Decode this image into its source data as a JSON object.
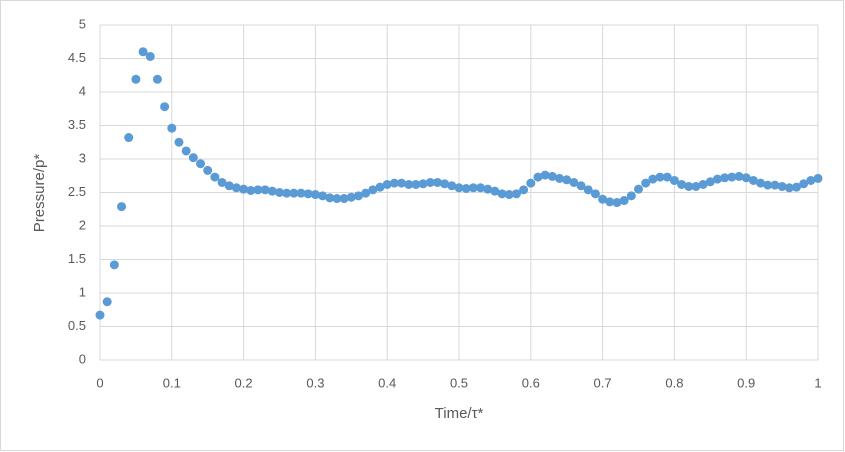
{
  "chart_data": {
    "type": "scatter",
    "x_label": "Time/τ*",
    "y_label": "Pressure/p*",
    "x": [
      0,
      0.01,
      0.02,
      0.03,
      0.04,
      0.05,
      0.06,
      0.07,
      0.08,
      0.09,
      0.1,
      0.11,
      0.12,
      0.13,
      0.14,
      0.15,
      0.16,
      0.17,
      0.18,
      0.19,
      0.2,
      0.21,
      0.22,
      0.23,
      0.24,
      0.25,
      0.26,
      0.27,
      0.28,
      0.29,
      0.3,
      0.31,
      0.32,
      0.33,
      0.34,
      0.35,
      0.36,
      0.37,
      0.38,
      0.39,
      0.4,
      0.41,
      0.42,
      0.43,
      0.44,
      0.45,
      0.46,
      0.47,
      0.48,
      0.49,
      0.5,
      0.51,
      0.52,
      0.53,
      0.54,
      0.55,
      0.56,
      0.57,
      0.58,
      0.59,
      0.6,
      0.61,
      0.62,
      0.63,
      0.64,
      0.65,
      0.66,
      0.67,
      0.68,
      0.69,
      0.7,
      0.71,
      0.72,
      0.73,
      0.74,
      0.75,
      0.76,
      0.77,
      0.78,
      0.79,
      0.8,
      0.81,
      0.82,
      0.83,
      0.84,
      0.85,
      0.86,
      0.87,
      0.88,
      0.89,
      0.9,
      0.91,
      0.92,
      0.93,
      0.94,
      0.95,
      0.96,
      0.97,
      0.98,
      0.99,
      1
    ],
    "values": [
      0.67,
      0.87,
      1.42,
      2.29,
      3.32,
      4.19,
      4.6,
      4.53,
      4.19,
      3.78,
      3.46,
      3.25,
      3.12,
      3.02,
      2.93,
      2.83,
      2.73,
      2.65,
      2.6,
      2.57,
      2.55,
      2.53,
      2.54,
      2.54,
      2.52,
      2.5,
      2.49,
      2.49,
      2.49,
      2.48,
      2.47,
      2.45,
      2.42,
      2.41,
      2.41,
      2.43,
      2.45,
      2.49,
      2.54,
      2.58,
      2.62,
      2.64,
      2.64,
      2.62,
      2.62,
      2.63,
      2.65,
      2.65,
      2.63,
      2.6,
      2.57,
      2.56,
      2.57,
      2.57,
      2.55,
      2.52,
      2.48,
      2.47,
      2.48,
      2.54,
      2.64,
      2.73,
      2.76,
      2.74,
      2.71,
      2.69,
      2.65,
      2.6,
      2.54,
      2.48,
      2.4,
      2.36,
      2.35,
      2.38,
      2.45,
      2.55,
      2.64,
      2.7,
      2.73,
      2.73,
      2.68,
      2.62,
      2.59,
      2.59,
      2.62,
      2.66,
      2.7,
      2.72,
      2.73,
      2.74,
      2.72,
      2.68,
      2.64,
      2.61,
      2.61,
      2.59,
      2.57,
      2.58,
      2.63,
      2.68,
      2.71
    ],
    "color": "#5b9bd5",
    "xlim": [
      0,
      1
    ],
    "xticks": [
      0,
      0.1,
      0.2,
      0.3,
      0.4,
      0.5,
      0.6,
      0.7,
      0.8,
      0.9,
      1
    ],
    "ylim": [
      0,
      5
    ],
    "yticks": [
      0,
      0.5,
      1,
      1.5,
      2,
      2.5,
      3,
      3.5,
      4,
      4.5,
      5
    ],
    "grid": true
  }
}
